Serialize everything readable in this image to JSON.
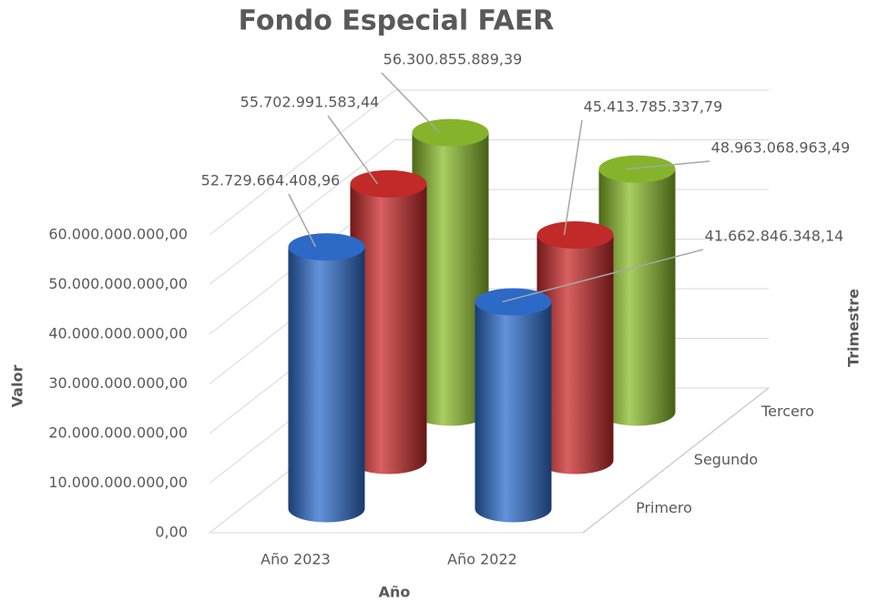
{
  "chart_data": {
    "type": "bar3d",
    "title": "Fondo Especial FAER",
    "x_label": "Año",
    "y_label": "Valor",
    "z_label": "Trimestre",
    "categories": [
      "Año 2023",
      "Año 2022"
    ],
    "series": [
      {
        "name": "Primero",
        "color": "#2f6fd0",
        "values": [
          52729664408.96,
          41662846348.14
        ],
        "value_labels": [
          "52.729.664.408,96",
          "41.662.846.348,14"
        ]
      },
      {
        "name": "Segundo",
        "color": "#cc2b2b",
        "values": [
          55702991583.44,
          45413785337.79
        ],
        "value_labels": [
          "55.702.991.583,44",
          "45.413.785.337,79"
        ]
      },
      {
        "name": "Tercero",
        "color": "#8cbd2c",
        "values": [
          56300855889.39,
          48963068963.49
        ],
        "value_labels": [
          "56.300.855.889,39",
          "48.963.068.963,49"
        ]
      }
    ],
    "ylim": [
      0,
      60000000000
    ],
    "yticks": [
      {
        "value": 0,
        "label": "0,00"
      },
      {
        "value": 10000000000,
        "label": "10.000.000.000,00"
      },
      {
        "value": 20000000000,
        "label": "20.000.000.000,00"
      },
      {
        "value": 30000000000,
        "label": "30.000.000.000,00"
      },
      {
        "value": 40000000000,
        "label": "40.000.000.000,00"
      },
      {
        "value": 50000000000,
        "label": "50.000.000.000,00"
      },
      {
        "value": 60000000000,
        "label": "60.000.000.000,00"
      }
    ],
    "grid": true
  }
}
